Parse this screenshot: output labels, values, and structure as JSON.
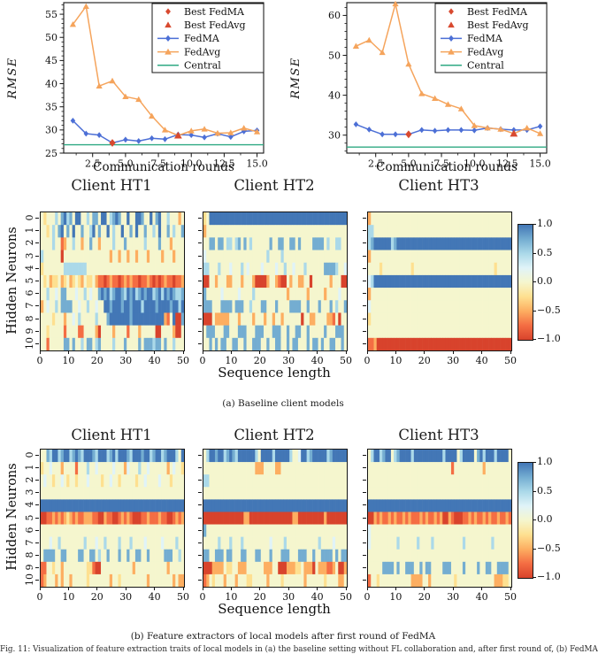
{
  "figure_caption": "Fig. 11: Visualization of feature extraction traits of local models in (a) the baseline setting without FL collaboration and, after first round of, (b) FedMA",
  "colors": {
    "fedma_blue": "#4c6fd6",
    "fedavg_orange": "#f5a45c",
    "best_red": "#d8492f",
    "central_green": "#2fa983",
    "axis": "#151515"
  },
  "heatmap_palette": {
    "B": {
      "value": 1.0,
      "hex": "#4377b6"
    },
    "b": {
      "value": 0.7,
      "hex": "#74add1"
    },
    "l": {
      "value": 0.45,
      "hex": "#abd9e9"
    },
    "c": {
      "value": 0.2,
      "hex": "#e0f3f8"
    },
    ".": {
      "value": 0.0,
      "hex": "#f5f6ce"
    },
    "y": {
      "value": -0.2,
      "hex": "#fee090"
    },
    "o": {
      "value": -0.45,
      "hex": "#fdae61"
    },
    "O": {
      "value": -0.7,
      "hex": "#f46d43"
    },
    "R": {
      "value": -0.95,
      "hex": "#d8432c"
    }
  },
  "chart_data": [
    {
      "id": "rmse-vs-rounds-left",
      "type": "line",
      "xlabel": "Communication rounds",
      "ylabel": "RMSE",
      "x": [
        1,
        2,
        3,
        4,
        5,
        6,
        7,
        8,
        9,
        10,
        11,
        12,
        13,
        14,
        15
      ],
      "xlim": [
        0.3,
        15.5
      ],
      "ylim": [
        25,
        57.5
      ],
      "xticks": [
        2.5,
        5.0,
        7.5,
        10.0,
        12.5,
        15.0
      ],
      "xtick_labels": [
        "2.5",
        "5.0",
        "7.5",
        "10.0",
        "12.5",
        "15.0"
      ],
      "xminor": [
        1.25,
        3.75,
        6.25,
        8.75,
        11.25,
        13.75
      ],
      "yticks": [
        25,
        30,
        35,
        40,
        45,
        50,
        55
      ],
      "ytick_labels": [
        "25",
        "30",
        "35",
        "40",
        "45",
        "50",
        "55"
      ],
      "y_minor_step": 1,
      "series": [
        {
          "name": "FedMA",
          "color": "#4c6fd6",
          "marker": "diamond",
          "values": [
            32.0,
            29.2,
            28.9,
            27.2,
            27.9,
            27.6,
            28.2,
            28.0,
            29.0,
            28.9,
            28.4,
            29.2,
            28.5,
            29.7,
            29.9
          ]
        },
        {
          "name": "FedAvg",
          "color": "#f5a45c",
          "marker": "triangle",
          "values": [
            52.8,
            56.7,
            39.5,
            40.6,
            37.2,
            36.6,
            33.0,
            30.0,
            28.8,
            29.8,
            30.2,
            29.3,
            29.4,
            30.4,
            29.6
          ]
        }
      ],
      "central": {
        "label": "Central",
        "color": "#2fa983",
        "value": 26.8
      },
      "best": [
        {
          "label": "Best FedMA",
          "marker": "diamond",
          "color": "#d8492f",
          "x": 4,
          "y": 27.2
        },
        {
          "label": "Best FedAvg",
          "marker": "triangle",
          "color": "#d8492f",
          "x": 9,
          "y": 28.8
        }
      ],
      "legend": [
        {
          "label": "Best FedMA",
          "marker": "diamond",
          "color": "#d8492f",
          "line": false
        },
        {
          "label": "Best FedAvg",
          "marker": "triangle",
          "color": "#d8492f",
          "line": false
        },
        {
          "label": "FedMA",
          "marker": "diamond",
          "color": "#4c6fd6",
          "line": true
        },
        {
          "label": "FedAvg",
          "marker": "triangle",
          "color": "#f5a45c",
          "line": true
        },
        {
          "label": "Central",
          "marker": "none",
          "color": "#2fa983",
          "line": true
        }
      ]
    },
    {
      "id": "rmse-vs-rounds-right",
      "type": "line",
      "xlabel": "Communication rounds",
      "ylabel": "RMSE",
      "x": [
        1,
        2,
        3,
        4,
        5,
        6,
        7,
        8,
        9,
        10,
        11,
        12,
        13,
        14,
        15
      ],
      "xlim": [
        0.3,
        15.5
      ],
      "ylim": [
        25.5,
        63.2
      ],
      "xticks": [
        2.5,
        5.0,
        7.5,
        10.0,
        12.5,
        15.0
      ],
      "xtick_labels": [
        "2.5",
        "5.0",
        "7.5",
        "10.0",
        "12.5",
        "15.0"
      ],
      "xminor": [
        1.25,
        3.75,
        6.25,
        8.75,
        11.25,
        13.75
      ],
      "yticks": [
        30,
        40,
        50,
        60
      ],
      "ytick_labels": [
        "30",
        "40",
        "50",
        "60"
      ],
      "y_minor_step": 2,
      "series": [
        {
          "name": "FedMA",
          "color": "#4c6fd6",
          "marker": "diamond",
          "values": [
            32.7,
            31.4,
            30.2,
            30.2,
            30.2,
            31.3,
            31.1,
            31.3,
            31.3,
            31.2,
            31.8,
            31.5,
            31.3,
            31.3,
            32.2
          ]
        },
        {
          "name": "FedAvg",
          "color": "#f5a45c",
          "marker": "triangle",
          "values": [
            52.3,
            53.8,
            50.7,
            62.9,
            47.8,
            40.4,
            39.2,
            37.7,
            36.6,
            32.4,
            31.8,
            31.5,
            30.4,
            31.8,
            30.4
          ]
        }
      ],
      "central": {
        "label": "Central",
        "color": "#2fa983",
        "value": 27.0
      },
      "best": [
        {
          "label": "Best FedMA",
          "marker": "diamond",
          "color": "#d8492f",
          "x": 5,
          "y": 30.2
        },
        {
          "label": "Best FedAvg",
          "marker": "triangle",
          "color": "#d8492f",
          "x": 13,
          "y": 30.4
        }
      ],
      "legend": [
        {
          "label": "Best FedMA",
          "marker": "diamond",
          "color": "#d8492f",
          "line": false
        },
        {
          "label": "Best FedAvg",
          "marker": "triangle",
          "color": "#d8492f",
          "line": false
        },
        {
          "label": "FedMA",
          "marker": "diamond",
          "color": "#4c6fd6",
          "line": true
        },
        {
          "label": "FedAvg",
          "marker": "triangle",
          "color": "#f5a45c",
          "line": true
        },
        {
          "label": "Central",
          "marker": "none",
          "color": "#2fa983",
          "line": true
        }
      ]
    },
    {
      "id": "heatmaps-baseline",
      "type": "heatmap",
      "caption": "(a) Baseline client models",
      "xlabel": "Sequence length",
      "ylabel": "Hidden Neurons",
      "xticks": [
        "0",
        "10",
        "20",
        "30",
        "40",
        "50"
      ],
      "yticks": [
        "0",
        "1",
        "2",
        "3",
        "4",
        "5",
        "6",
        "7",
        "8",
        "9",
        "10"
      ],
      "colorbar_ticks": [
        "1.0",
        "0.5",
        "0.0",
        "−0.5",
        "−1.0"
      ],
      "vmin": -1.0,
      "vmax": 1.0,
      "panels": [
        {
          "title": "Client HT1",
          "rows": [
            [
              ".y...l.bBl",
              "b.BB..l.bb",
              ".BB.lbBb..",
              "B..BBb..B.",
              "bB..l...o."
            ],
            [
              "..y.l.bB.b",
              ".B..b..lB.",
              "b..B.l..B.",
              ".b.B..b..l",
              ".B..b.l..b"
            ],
            [
              "....l..Oo.",
              ".l..o..b..",
              "o....l...b",
              "......l...",
              ".b...o...."
            ],
            [
              "l......R..",
              "..........",
              "....o..o..",
              "o..o...o..",
              "..o...o..."
            ],
            [
              "y.......ll",
              "llllll....",
              "..........",
              "..........",
              ".........."
            ],
            [
              ".y.oyy.oy.",
              "oy.yo.yy.o",
              "OOROoOOROo",
              "OoOOROOoOR",
              "OROoOOROOo"
            ],
            [
              "..l..c.bb.",
              "..c..l.c..",
              "bBbBlbBBbl",
              "BbBlbBbBBl",
              "bBlBbBbllb"
            ],
            [
              "o.c..l.bbb",
              "b..c..l..c",
              "..BBbBBBbB",
              "BbBBBlBBBB",
              "bBBBBbBBlB"
            ],
            [
              "....y...o.",
              ".c.l.....l",
              "...bBBBBBB",
              "BbBBBBBBBB",
              "BBBoO.BRRb"
            ],
            [
              "..y.....O.",
              "...OO....o",
              "R....o....",
              "O...o.....",
              "RR....oRR."
            ],
            [
              "..O.....bb",
              ".b..l.bb.l",
              "b....l...b",
              "....b.bbbl",
              "bb.b..l..."
            ]
          ]
        },
        {
          "title": "Client HT2",
          "rows": [
            [
              "y.BBBBBBBB",
              "BBBBBBBBBB",
              "BBBBBBBBBB",
              "BBBBBBBBBB",
              "BBBBBBBBBB"
            ],
            [
              "o.........",
              "..........",
              "..........",
              "..........",
              ".........."
            ],
            [
              "..bb.bb.ll",
              ".lb.b.l...",
              "...b..bb..",
              "bb.b....bb",
              "bb.l..ll.."
            ],
            [
              "c.........",
              "..........",
              "..l....l..",
              "..........",
              ".........."
            ],
            [
              "ll...l...c",
              "...l.c....",
              "c....c..l.",
              ".c...l....",
              "..bbbbl..c"
            ],
            [
              "RR..o...oo",
              "...o...oRR",
              "RRo..oORR.",
              "o..oo..R..",
              "....o...RR"
            ],
            [
              "b.....c...",
              "..c....l..",
              ".........o",
              "......o...",
              "..o....c.."
            ],
            [
              "bbb...bbbb",
              ".bbb..l...",
              "bb...b....",
              "bbbb..b...",
              "b...b.l..b"
            ],
            [
              "RRR.ooooo.",
              "..o....o..",
              ".o..o..o..",
              "....R..oo.",
              "...ooO.R.."
            ],
            [
              ".bbb...bb.",
              "..bbb...bb",
              "b...bbb..b",
              "..bb..b...",
              "..b...bbb."
            ],
            [
              "..b.b.bb..",
              "bb..b..bbb",
              "..b..bb..b",
              ".bb...b.bb",
              ".b..bb..b."
            ]
          ]
        },
        {
          "title": "Client HT3",
          "rows": [
            [
              "o.........",
              "..........",
              "..........",
              "..........",
              ".........."
            ],
            [
              "ll........",
              "..........",
              "..........",
              "..........",
              ".........."
            ],
            [
              "lbBBBBBBlb",
              "BBBBBBBBBB",
              "BBBBBBBBBB",
              "BBBBBBBBBB",
              "BBBBBBBBBB"
            ],
            [
              "o.........",
              "..........",
              "..........",
              "..........",
              ".........."
            ],
            [
              "....y.....",
              ".....y....",
              "..........",
              "..........",
              "....y....."
            ],
            [
              "clBBBBBBBB",
              "BBBBBBBBBB",
              "BBBBBBBBBB",
              "BBBBBBBBBB",
              "BBBBBBBBBB"
            ],
            [
              "o.........",
              "..........",
              "..........",
              "..........",
              ".........."
            ],
            [
              "c.........",
              "..........",
              "..........",
              "..........",
              ".........."
            ],
            [
              "y.........",
              "..........",
              "..........",
              "..........",
              ".........."
            ],
            [
              "..........",
              "..........",
              "..........",
              "..........",
              ".........."
            ],
            [
              "OOoRRRRRRR",
              "RRRRRRRRRR",
              "RRRRRRRRRR",
              "RRRRRRRRRR",
              "RRRRRRRRRR"
            ]
          ]
        }
      ]
    },
    {
      "id": "heatmaps-fedma-round1",
      "type": "heatmap",
      "caption": "(b) Feature extractors of local models after first round of FedMA",
      "xlabel": "Sequence length",
      "ylabel": "Hidden Neurons",
      "xticks": [
        "0",
        "10",
        "20",
        "30",
        "40",
        "50"
      ],
      "yticks": [
        "0",
        "1",
        "2",
        "3",
        "4",
        "5",
        "6",
        "7",
        "8",
        "9",
        "10"
      ],
      "colorbar_ticks": [
        "1.0",
        "0.5",
        "0.0",
        "−0.5",
        "−1.0"
      ],
      "vmin": -1.0,
      "vmax": 1.0,
      "panels": [
        {
          "title": "Client HT1",
          "rows": [
            [
              "..blBBlbBB",
              "lbBblBBBbl",
              "BBBlbBlBBB",
              "blBBBbBBlb",
              "BBlbBBBl.B"
            ],
            [
              "y..c...o..",
              "..O...l..c",
              ".....c...o",
              "c...l..c..",
              "....o.c..y"
            ],
            [
              ".c..y..c.y",
              "..y...c...",
              ".y..c..y..",
              "...y..c...",
              ".c...y...."
            ],
            [
              "..........",
              "..........",
              "..........",
              "..........",
              ".........."
            ],
            [
              "BBBBBBBBBB",
              "BBBBBBBBBB",
              "BBBBBBBBBB",
              "BBBBBBBBBB",
              "BBBBBBBBBB"
            ],
            [
              "RROOoOoOoy",
              "oOoOOoooOO",
              "RRoOORROoO",
              "oORRROOoOO",
              "OoOORROoOo"
            ],
            [
              "..........",
              "..........",
              "..........",
              "..........",
              ".........."
            ],
            [
              "...c..l...",
              ".....l...c",
              "..l....l..",
              ".l....c...",
              "..c....l.."
            ],
            [
              ".bbbb..bb.",
              "...bb..bb.",
              "l..b...b..",
              "b..bb..b..",
              "...bbb..l."
            ],
            [
              "OO..y..o..",
              "......yyOR",
              "R.........",
              "..o.......",
              "....o....."
            ],
            [
              "Oo...o.o..",
              "o.....y...",
              "....o..y..",
              ".......o..",
              "......o.oo"
            ]
          ]
        },
        {
          "title": "Client HT2",
          "rows": [
            [
              ".lBBbBBlbB",
              "blBBBBBBl.",
              "BBBBlBBBBB",
              "l..cBBlbBB",
              "BBBlbBBBBB"
            ],
            [
              "..........",
              "........oo",
              "o....oo...",
              "..........",
              ".........."
            ],
            [
              "ll........",
              "..........",
              "..........",
              "..........",
              ".........."
            ],
            [
              "..........",
              "..........",
              "..........",
              "..........",
              ".........."
            ],
            [
              "BBBBBBBBBB",
              "BBBBBBBBBB",
              "BBBBBBBBBB",
              "BBBBBBBBBB",
              "BBBBBBBBBB"
            ],
            [
              "RRRRRRRRRR",
              "RRRRooRRRR",
              "RRRRRRRRRR",
              "RooRRRRRRR",
              "RRoRRRRRRR"
            ],
            [
              "b.........",
              "..........",
              "..........",
              "..........",
              ".........."
            ],
            [
              ".....l...l",
              "...l......",
              "...c....l.",
              "..........",
              "l....c...."
            ],
            [
              "bb..bbb.bb",
              "...bb...bb",
              "...b...bbb",
              "...bbb..b.",
              ".bbbb.b.bb"
            ],
            [
              "RRRoooo.yy",
              "..ooo.....",
              ".ooo..RRRo",
              "ooyy.oooR.",
              "oooOOo.RRo"
            ],
            [
              "Oo.y...o..",
              ".o...yy...",
              "..o....y..",
              ".....o....",
              "..y....oo."
            ]
          ]
        },
        {
          "title": "Client HT3",
          "rows": [
            [
              ".lBBlbBB.l",
              "bBBBBlBBBB",
              "BBBBBBlBBB",
              "B.lBBBB.bB",
              "lBBBlBBBB."
            ],
            [
              "..........",
              "..........",
              ".........O",
              "..........",
              "o........."
            ],
            [
              "..........",
              "..........",
              "..........",
              "..........",
              ".........."
            ],
            [
              "..........",
              "..........",
              "..........",
              "..........",
              ".........."
            ],
            [
              "BBBBBBBBBB",
              "BBBBBBBBBB",
              "BBBBBBBBBB",
              "BBBBBBBBBB",
              "BBBBBBBBBB"
            ],
            [
              "RRoOoOOoOo",
              "OOoOoOOOoO",
              "oOOoOoRRoO",
              "RRROOoOoOO",
              "oOoOOoOOoO"
            ],
            [
              "c.........",
              "..........",
              "..........",
              "..........",
              ".........."
            ],
            [
              "c.........",
              "l......l..",
              "..l.......",
              "...l......",
              "...l......"
            ],
            [
              "..........",
              "..........",
              "..........",
              "..........",
              ".........."
            ],
            [
              ".....bbbb.",
              "b..bbb..b.",
              "bb....bbb.",
              "...b....b.",
              ".bb..bbbb."
            ],
            [
              "O..y......",
              ".....oooo.",
              ".o........",
              "y.........",
              "....oooyy."
            ]
          ]
        }
      ]
    }
  ]
}
